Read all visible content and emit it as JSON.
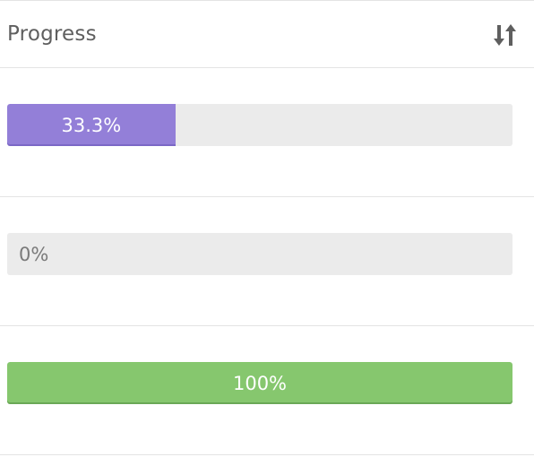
{
  "header": {
    "column_label": "Progress",
    "sort_icon": "sort-arrows-icon"
  },
  "rows": [
    {
      "percent_value": 33.3,
      "label": "33.3%",
      "color": "#937fd8",
      "edge_color": "#7b68c6"
    },
    {
      "percent_value": 0,
      "label": "0%",
      "color": "#937fd8",
      "edge_color": "#7b68c6"
    },
    {
      "percent_value": 100,
      "label": "100%",
      "color": "#86c76e",
      "edge_color": "#6aa856"
    }
  ],
  "colors": {
    "track": "#ebebeb",
    "divider": "#e4e4e4",
    "header_text": "#5f5f5f"
  }
}
